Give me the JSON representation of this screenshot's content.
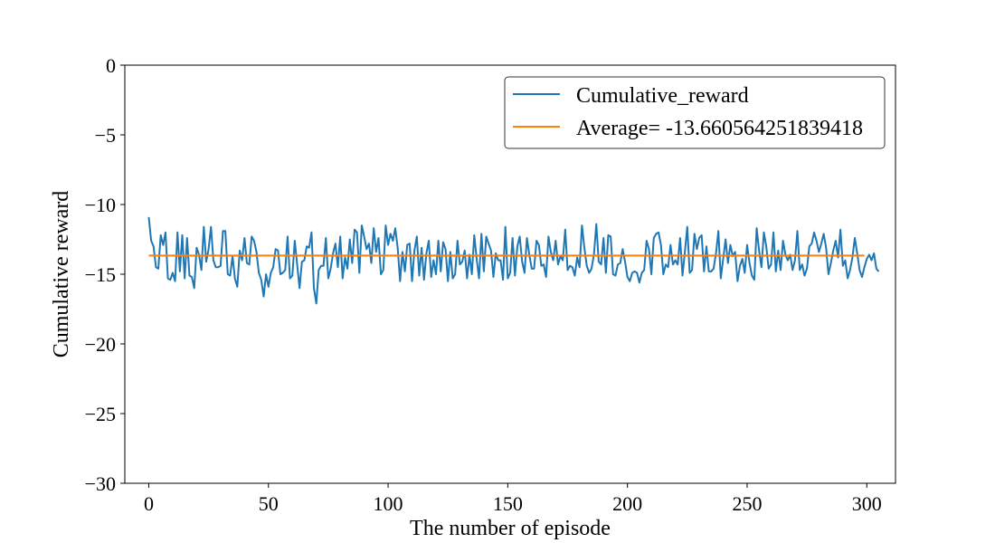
{
  "chart_data": {
    "type": "line",
    "xlabel": "The number of episode",
    "ylabel": "Cumulative reward",
    "xlim": [
      -10,
      312
    ],
    "ylim": [
      -30,
      0
    ],
    "xticks": [
      0,
      50,
      100,
      150,
      200,
      250,
      300
    ],
    "yticks": [
      0,
      -5,
      -10,
      -15,
      -20,
      -25,
      -30
    ],
    "xtick_labels": [
      "0",
      "50",
      "100",
      "150",
      "200",
      "250",
      "300"
    ],
    "ytick_labels": [
      "0",
      "−5",
      "−10",
      "−15",
      "−20",
      "−25",
      "−30"
    ],
    "grid": false,
    "legend_position": "top-right",
    "series": [
      {
        "name": "Cumulative_reward",
        "color": "#1f77b4",
        "values": [
          -10.9,
          -12.6,
          -13.0,
          -14.5,
          -14.6,
          -12.2,
          -12.9,
          -12.0,
          -15.3,
          -15.4,
          -14.9,
          -15.5,
          -12.0,
          -14.8,
          -12.2,
          -15.3,
          -12.4,
          -15.1,
          -15.2,
          -16.0,
          -13.1,
          -13.6,
          -14.7,
          -11.6,
          -14.1,
          -13.2,
          -11.6,
          -14.0,
          -14.5,
          -14.5,
          -14.4,
          -11.9,
          -11.9,
          -15.0,
          -15.1,
          -13.7,
          -15.3,
          -15.9,
          -13.3,
          -14.0,
          -12.4,
          -14.2,
          -14.3,
          -12.3,
          -12.6,
          -13.4,
          -14.9,
          -15.4,
          -16.6,
          -15.0,
          -15.9,
          -14.9,
          -14.5,
          -13.2,
          -13.3,
          -15.0,
          -14.9,
          -14.7,
          -12.3,
          -15.3,
          -15.1,
          -12.6,
          -14.3,
          -16.0,
          -14.1,
          -14.0,
          -13.0,
          -13.1,
          -12.0,
          -16.0,
          -17.1,
          -14.7,
          -14.4,
          -14.4,
          -12.4,
          -15.3,
          -14.6,
          -13.5,
          -12.8,
          -14.5,
          -12.3,
          -15.3,
          -13.8,
          -14.6,
          -12.5,
          -14.2,
          -11.8,
          -12.0,
          -14.9,
          -11.5,
          -12.3,
          -13.2,
          -12.8,
          -14.2,
          -11.7,
          -13.4,
          -12.4,
          -15.0,
          -14.7,
          -11.5,
          -12.9,
          -12.1,
          -12.6,
          -11.7,
          -13.1,
          -15.5,
          -13.4,
          -14.8,
          -12.9,
          -12.8,
          -15.5,
          -13.3,
          -12.3,
          -15.1,
          -13.1,
          -15.4,
          -13.5,
          -12.6,
          -15.2,
          -14.0,
          -15.0,
          -12.6,
          -14.8,
          -12.7,
          -13.2,
          -15.5,
          -13.4,
          -15.3,
          -15.0,
          -12.6,
          -14.3,
          -14.1,
          -13.3,
          -15.3,
          -13.6,
          -15.0,
          -12.2,
          -13.9,
          -15.3,
          -12.1,
          -14.8,
          -12.3,
          -12.8,
          -13.3,
          -15.2,
          -13.5,
          -14.0,
          -14.0,
          -15.4,
          -11.6,
          -15.3,
          -14.9,
          -12.4,
          -15.1,
          -13.0,
          -12.3,
          -14.1,
          -14.9,
          -12.4,
          -13.6,
          -14.6,
          -14.6,
          -12.6,
          -12.9,
          -14.4,
          -14.3,
          -15.2,
          -12.3,
          -13.4,
          -14.0,
          -12.6,
          -14.3,
          -13.7,
          -14.0,
          -11.8,
          -14.7,
          -14.4,
          -14.5,
          -15.1,
          -13.8,
          -14.5,
          -11.5,
          -13.1,
          -14.4,
          -14.9,
          -14.6,
          -13.6,
          -11.4,
          -14.1,
          -14.3,
          -12.4,
          -14.9,
          -12.2,
          -12.3,
          -15.0,
          -15.1,
          -14.3,
          -14.2,
          -13.2,
          -14.1,
          -15.2,
          -15.5,
          -14.9,
          -14.8,
          -14.9,
          -15.6,
          -14.9,
          -14.7,
          -12.6,
          -13.2,
          -15.0,
          -12.4,
          -12.1,
          -12.0,
          -12.9,
          -15.0,
          -14.3,
          -14.5,
          -12.9,
          -14.3,
          -14.0,
          -14.3,
          -12.4,
          -15.1,
          -13.4,
          -11.6,
          -14.9,
          -14.7,
          -12.1,
          -13.2,
          -12.4,
          -12.2,
          -14.8,
          -13.0,
          -14.8,
          -14.8,
          -14.6,
          -13.5,
          -11.9,
          -15.3,
          -13.9,
          -12.5,
          -14.2,
          -12.9,
          -13.7,
          -13.4,
          -15.5,
          -14.4,
          -13.9,
          -14.9,
          -12.9,
          -14.2,
          -15.1,
          -15.4,
          -11.7,
          -13.3,
          -14.5,
          -12.0,
          -13.0,
          -14.6,
          -14.3,
          -12.0,
          -14.8,
          -13.3,
          -14.7,
          -12.6,
          -13.6,
          -14.0,
          -13.6,
          -14.7,
          -14.0,
          -11.9,
          -14.7,
          -14.3,
          -15.1,
          -14.6,
          -13.0,
          -12.8,
          -12.0,
          -12.6,
          -13.4,
          -12.8,
          -12.1,
          -13.1,
          -15.0,
          -14.2,
          -13.3,
          -12.6,
          -13.8,
          -11.8,
          -14.4,
          -14.0,
          -15.3,
          -14.7,
          -13.8,
          -12.4,
          -13.5,
          -14.7,
          -15.2,
          -14.5,
          -13.9,
          -13.6,
          -14.0,
          -13.5,
          -14.6,
          -14.8
        ]
      },
      {
        "name": "Average= -13.660564251839418",
        "color": "#ff7f0e",
        "constant": -13.660564251839418,
        "x_range": [
          0,
          299
        ]
      }
    ]
  }
}
